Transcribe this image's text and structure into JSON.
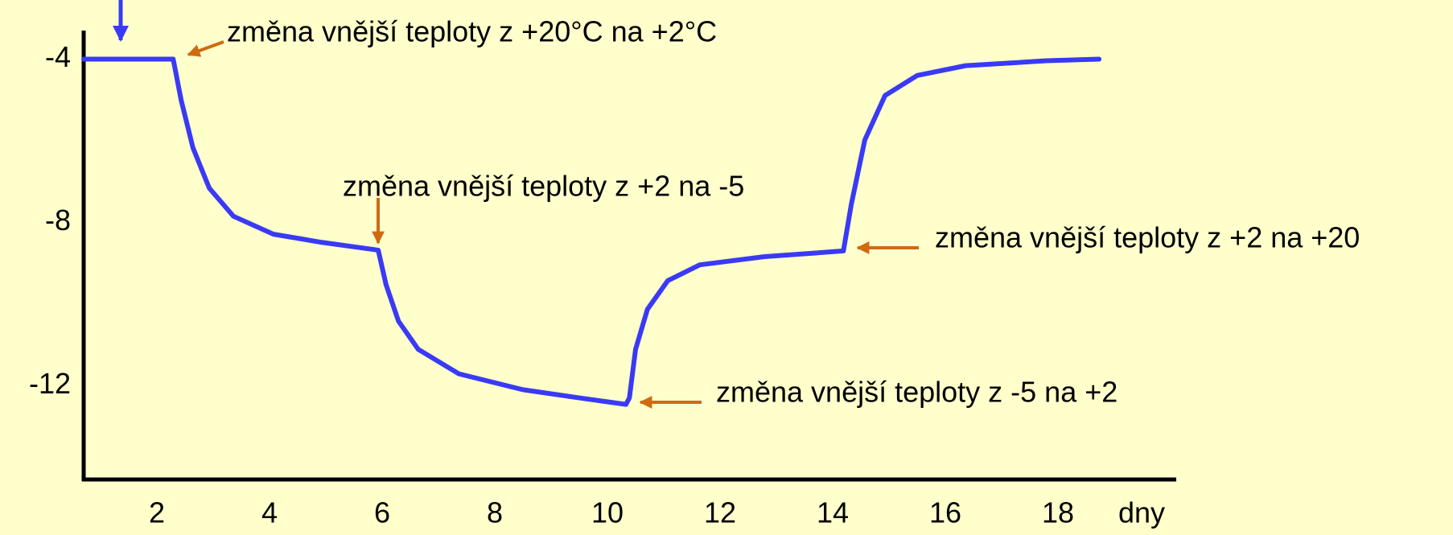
{
  "chart_data": {
    "type": "line",
    "x_label": "dny",
    "x": [
      0.7,
      2.29,
      2.43,
      2.64,
      2.93,
      3.36,
      4.07,
      4.93,
      5.93,
      6.07,
      6.29,
      6.64,
      7.36,
      8.5,
      9.5,
      10.33,
      10.39,
      10.5,
      10.71,
      11.07,
      11.64,
      12.79,
      14.19,
      14.33,
      14.57,
      14.93,
      15.5,
      16.36,
      17.79,
      18.73
    ],
    "series": [
      {
        "color": "#3a3af5",
        "values": [
          -4,
          -4,
          -5.0,
          -6.17,
          -7.16,
          -7.85,
          -8.29,
          -8.49,
          -8.68,
          -9.53,
          -10.42,
          -11.11,
          -11.71,
          -12.1,
          -12.3,
          -12.46,
          -12.3,
          -11.11,
          -10.13,
          -9.43,
          -9.04,
          -8.84,
          -8.7,
          -7.56,
          -5.98,
          -4.89,
          -4.4,
          -4.16,
          -4.04,
          -4.0
        ]
      }
    ],
    "xlim": [
      0.7,
      20.1
    ],
    "xticks": [
      2,
      4,
      6,
      8,
      10,
      12,
      14,
      16,
      18
    ],
    "ylim": [
      -14.3,
      -3.3
    ],
    "yticks": [
      -4,
      -8,
      -12
    ],
    "grid": false,
    "annotations": [
      "změna vnější teploty z +20°C na +2°C",
      "změna vnější teploty z +2 na -5",
      "změna vnější teploty z +2 na +20",
      "změna vnější teploty z -5 na +2"
    ]
  }
}
